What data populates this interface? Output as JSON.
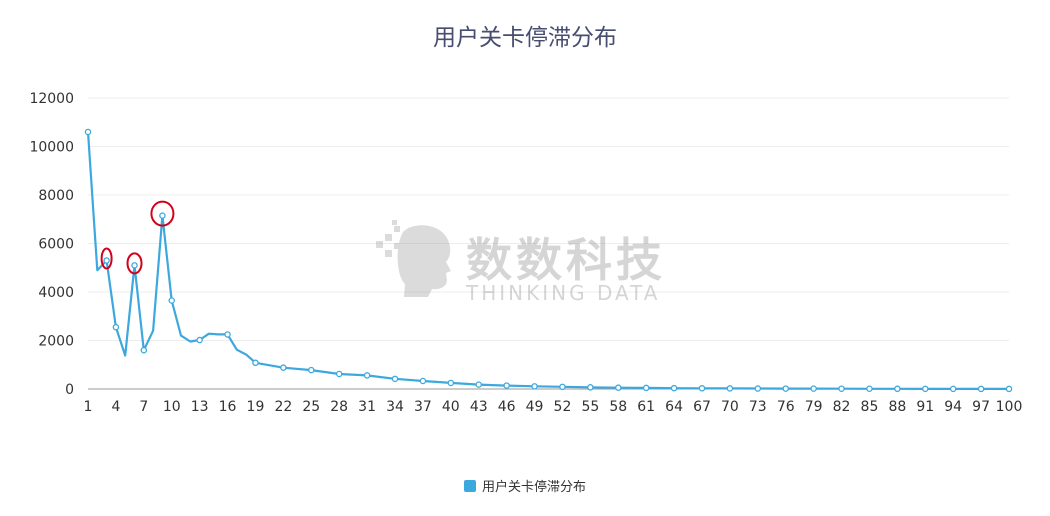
{
  "chart_data": {
    "type": "line",
    "title": "用户关卡停滞分布",
    "xlabel": "",
    "ylabel": "",
    "ylim": [
      0,
      12000
    ],
    "yticks": [
      0,
      2000,
      4000,
      6000,
      8000,
      10000,
      12000
    ],
    "xlim": [
      1,
      100
    ],
    "xticks": [
      1,
      4,
      7,
      10,
      13,
      16,
      19,
      22,
      25,
      28,
      31,
      34,
      37,
      40,
      43,
      46,
      49,
      52,
      55,
      58,
      61,
      64,
      67,
      70,
      73,
      76,
      79,
      82,
      85,
      88,
      91,
      94,
      97,
      100
    ],
    "grid": true,
    "legend_position": "bottom",
    "series": [
      {
        "name": "用户关卡停滞分布",
        "color": "#3ca8de",
        "x": [
          1,
          2,
          3,
          4,
          5,
          6,
          7,
          8,
          9,
          10,
          11,
          12,
          13,
          14,
          15,
          16,
          17,
          18,
          19,
          22,
          25,
          28,
          31,
          34,
          37,
          40,
          43,
          46,
          49,
          52,
          55,
          58,
          61,
          64,
          67,
          70,
          73,
          76,
          79,
          82,
          85,
          88,
          91,
          94,
          97,
          100
        ],
        "y": [
          10600,
          4900,
          5300,
          2550,
          1380,
          5100,
          1600,
          2400,
          7150,
          3650,
          2200,
          1960,
          2020,
          2280,
          2250,
          2250,
          1620,
          1420,
          1080,
          880,
          780,
          620,
          560,
          420,
          330,
          250,
          180,
          140,
          110,
          90,
          70,
          55,
          45,
          35,
          30,
          25,
          20,
          18,
          15,
          12,
          10,
          8,
          6,
          5,
          4,
          3
        ],
        "marker_x": [
          1,
          3,
          4,
          6,
          7,
          9,
          10,
          13,
          16,
          19,
          22,
          25,
          28,
          31,
          34,
          37,
          40,
          43,
          46,
          49,
          52,
          55,
          58,
          61,
          64,
          67,
          70,
          73,
          76,
          79,
          82,
          85,
          88,
          91,
          94,
          97,
          100
        ]
      }
    ],
    "annotations": [
      {
        "shape": "ellipse",
        "color": "#d0021b",
        "at_x": 3,
        "at_y": 5300
      },
      {
        "shape": "ellipse",
        "color": "#d0021b",
        "at_x": 6,
        "at_y": 5100
      },
      {
        "shape": "ellipse",
        "color": "#d0021b",
        "at_x": 9,
        "at_y": 7150
      }
    ]
  },
  "legend": {
    "label": "用户关卡停滞分布"
  },
  "watermark": {
    "brand_cn": "数数科技",
    "brand_en": "THINKING DATA"
  }
}
